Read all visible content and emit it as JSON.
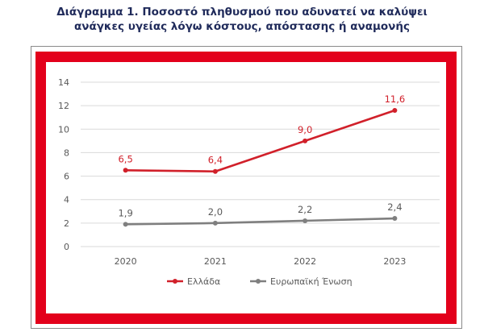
{
  "title_lines": [
    "Διάγραμμα 1. Ποσοστό πληθυσμού που αδυνατεί να καλύψει",
    "ανάγκες υγείας λόγω κόστους, απόστασης ή αναμονής"
  ],
  "colors": {
    "title": "#1f2a5a",
    "frame": "#e3001b",
    "greece": "#d1202a",
    "eu": "#7f7f7f",
    "grid": "#d9d9d9",
    "axis_text": "#595959"
  },
  "chart_data": {
    "type": "line",
    "title": "Διάγραμμα 1. Ποσοστό πληθυσμού που αδυνατεί να καλύψει ανάγκες υγείας λόγω κόστους, απόστασης ή αναμονής",
    "categories": [
      "2020",
      "2021",
      "2022",
      "2023"
    ],
    "series": [
      {
        "name": "Ελλάδα",
        "values": [
          6.5,
          6.4,
          9.0,
          11.6
        ],
        "labels": [
          "6,5",
          "6,4",
          "9,0",
          "11,6"
        ],
        "color": "#d1202a"
      },
      {
        "name": "Ευρωπαϊκή Ένωση",
        "values": [
          1.9,
          2.0,
          2.2,
          2.4
        ],
        "labels": [
          "1,9",
          "2,0",
          "2,2",
          "2,4"
        ],
        "color": "#7f7f7f"
      }
    ],
    "xlabel": "",
    "ylabel": "",
    "ylim": [
      0,
      14
    ],
    "yticks": [
      "0",
      "2",
      "4",
      "6",
      "8",
      "10",
      "12",
      "14"
    ],
    "grid": true,
    "legend": "bottom"
  }
}
